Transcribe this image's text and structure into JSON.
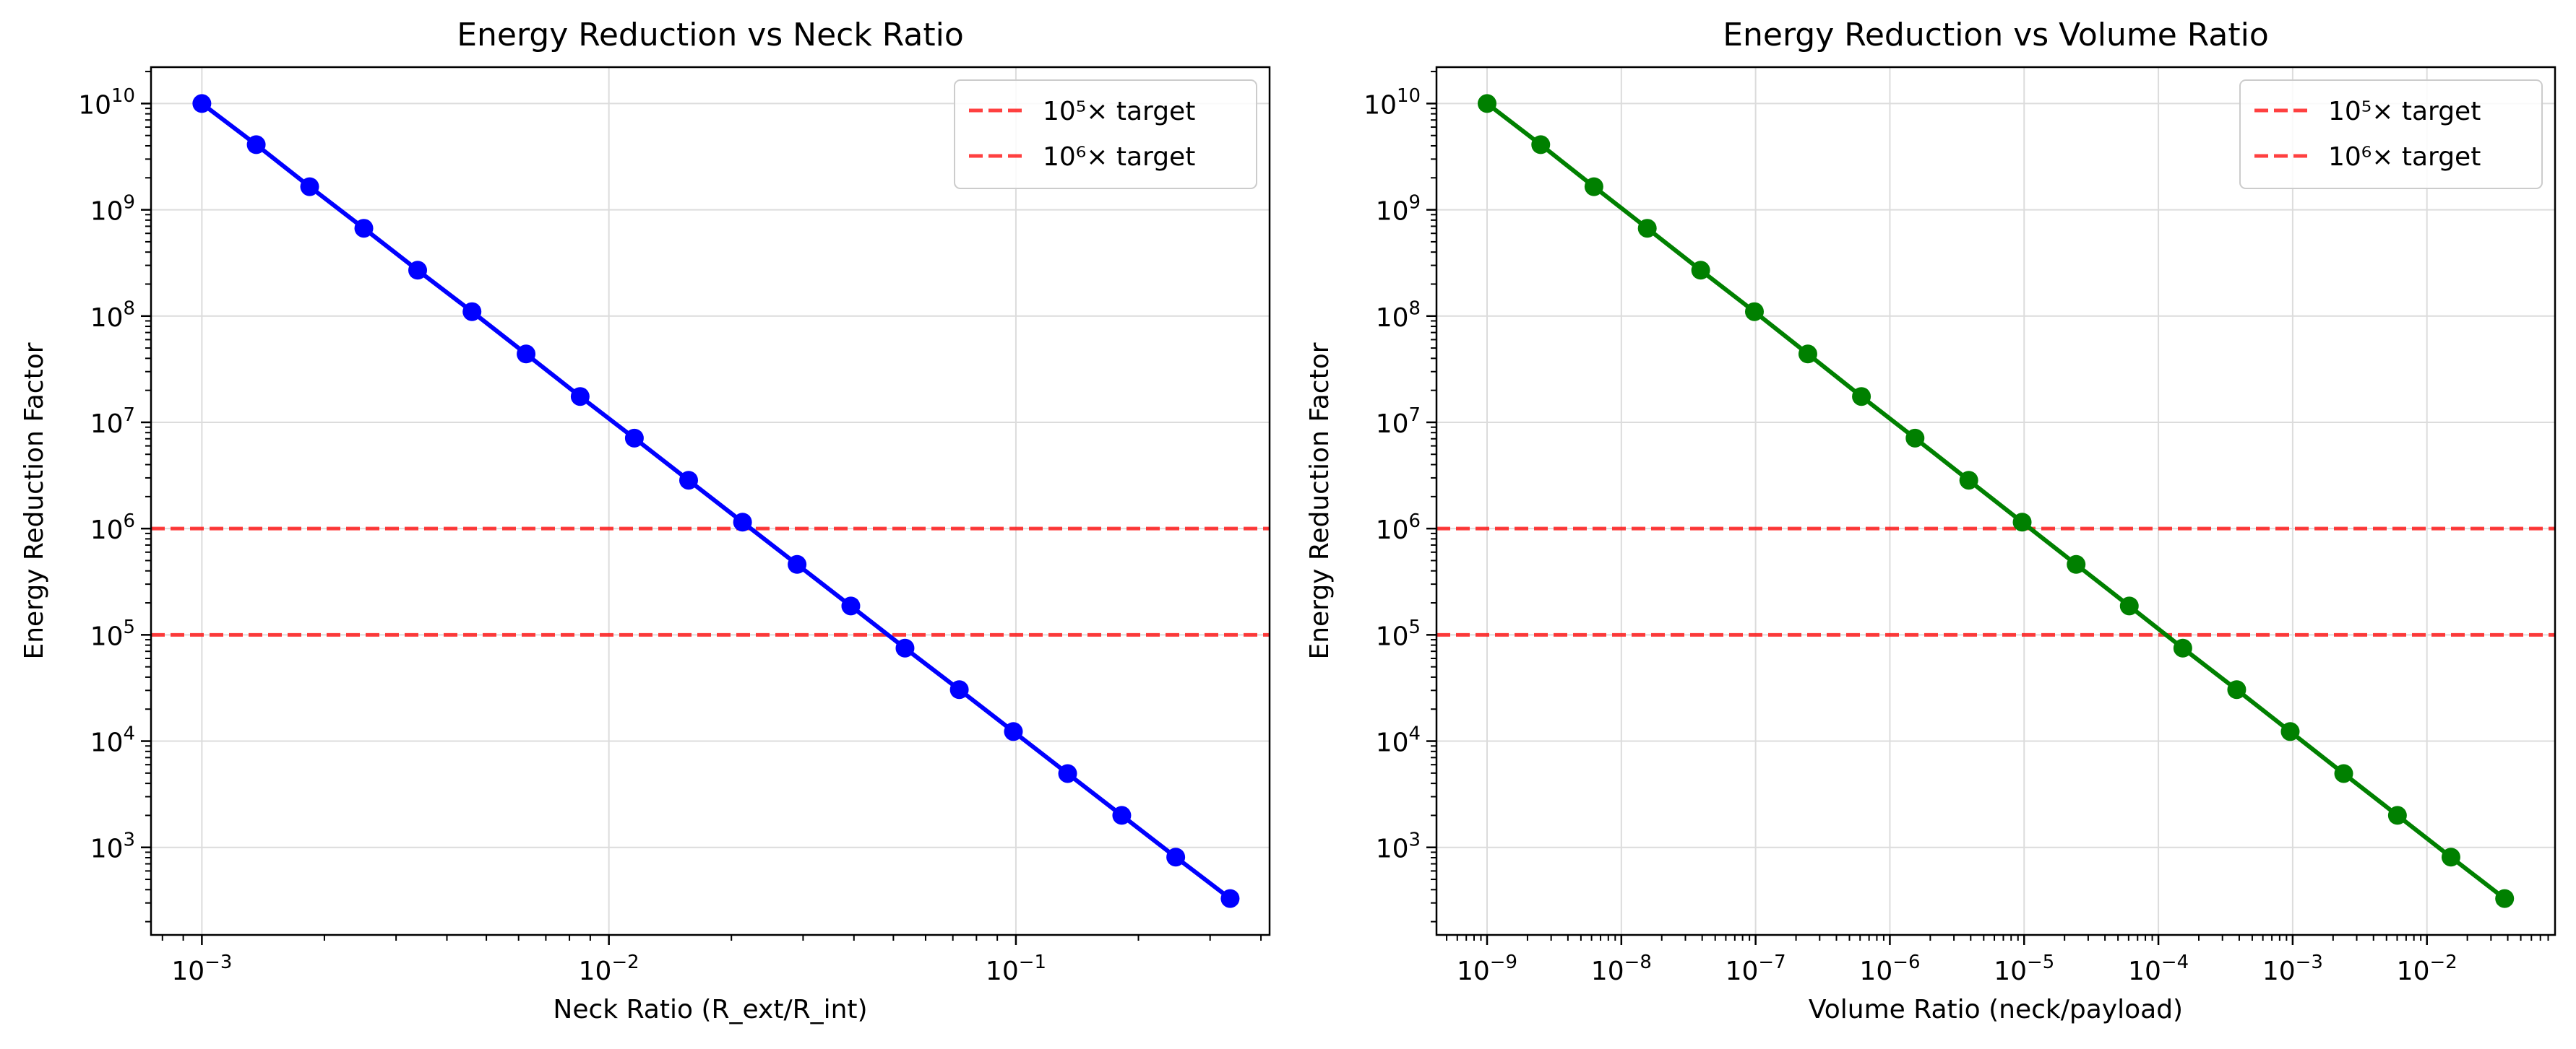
{
  "chart_data": [
    {
      "type": "line",
      "title": "Energy Reduction vs Neck Ratio",
      "xlabel": "Neck Ratio (R_ext/R_int)",
      "ylabel": "Energy Reduction Factor",
      "xscale": "log",
      "yscale": "log",
      "xlim": [
        0.00075,
        0.42
      ],
      "ylim": [
        150,
        22000000000
      ],
      "xticks": [
        {
          "value": 0.001,
          "base": "10",
          "exp": "−3"
        },
        {
          "value": 0.01,
          "base": "10",
          "exp": "−2"
        },
        {
          "value": 0.1,
          "base": "10",
          "exp": "−1"
        }
      ],
      "yticks": [
        {
          "value": 1000,
          "base": "10",
          "exp": "3"
        },
        {
          "value": 10000,
          "base": "10",
          "exp": "4"
        },
        {
          "value": 100000,
          "base": "10",
          "exp": "5"
        },
        {
          "value": 1000000,
          "base": "10",
          "exp": "6"
        },
        {
          "value": 10000000,
          "base": "10",
          "exp": "7"
        },
        {
          "value": 100000000,
          "base": "10",
          "exp": "8"
        },
        {
          "value": 1000000000,
          "base": "10",
          "exp": "9"
        },
        {
          "value": 10000000000,
          "base": "10",
          "exp": "10"
        }
      ],
      "grid": true,
      "legend_position": "upper right",
      "series": [
        {
          "name": "",
          "color": "#0000ff",
          "x": [
            0.001,
            0.00136,
            0.00184,
            0.0025,
            0.00339,
            0.00461,
            0.00626,
            0.0085,
            0.01155,
            0.0157,
            0.0213,
            0.029,
            0.0393,
            0.0534,
            0.0726,
            0.0986,
            0.134,
            0.182,
            0.247,
            0.336
          ],
          "y": [
            10000000000,
            4100000000,
            1650000000,
            670000000,
            270000000,
            110000000,
            44000000,
            17500000,
            7100000,
            2850000,
            1150000,
            460000,
            187000,
            75000,
            30500,
            12300,
            4950,
            2000,
            810,
            330
          ]
        }
      ],
      "hlines": [
        {
          "y": 100000,
          "label": "10⁵× target",
          "color": "#ff0000"
        },
        {
          "y": 1000000,
          "label": "10⁶× target",
          "color": "#ff0000"
        }
      ]
    },
    {
      "type": "line",
      "title": "Energy Reduction vs Volume Ratio",
      "xlabel": "Volume Ratio (neck/payload)",
      "ylabel": "Energy Reduction Factor",
      "xscale": "log",
      "yscale": "log",
      "xlim": [
        4.2e-10,
        0.09
      ],
      "ylim": [
        150,
        22000000000
      ],
      "xticks": [
        {
          "value": 1e-09,
          "base": "10",
          "exp": "−9"
        },
        {
          "value": 1e-08,
          "base": "10",
          "exp": "−8"
        },
        {
          "value": 1e-07,
          "base": "10",
          "exp": "−7"
        },
        {
          "value": 1e-06,
          "base": "10",
          "exp": "−6"
        },
        {
          "value": 1e-05,
          "base": "10",
          "exp": "−5"
        },
        {
          "value": 0.0001,
          "base": "10",
          "exp": "−4"
        },
        {
          "value": 0.001,
          "base": "10",
          "exp": "−3"
        },
        {
          "value": 0.01,
          "base": "10",
          "exp": "−2"
        }
      ],
      "yticks": [
        {
          "value": 1000,
          "base": "10",
          "exp": "3"
        },
        {
          "value": 10000,
          "base": "10",
          "exp": "4"
        },
        {
          "value": 100000,
          "base": "10",
          "exp": "5"
        },
        {
          "value": 1000000,
          "base": "10",
          "exp": "6"
        },
        {
          "value": 10000000,
          "base": "10",
          "exp": "7"
        },
        {
          "value": 100000000,
          "base": "10",
          "exp": "8"
        },
        {
          "value": 1000000000,
          "base": "10",
          "exp": "9"
        },
        {
          "value": 10000000000,
          "base": "10",
          "exp": "10"
        }
      ],
      "grid": true,
      "legend_position": "upper right",
      "series": [
        {
          "name": "",
          "color": "#008000",
          "x": [
            1e-09,
            2.51e-09,
            6.25e-09,
            1.56e-08,
            3.9e-08,
            9.8e-08,
            2.45e-07,
            6.14e-07,
            1.54e-06,
            3.87e-06,
            9.67e-06,
            2.44e-05,
            6.07e-05,
            0.000152,
            0.000383,
            0.000959,
            0.0024,
            0.00603,
            0.0151,
            0.0379
          ],
          "y": [
            10000000000,
            4100000000,
            1650000000,
            670000000,
            270000000,
            110000000,
            44000000,
            17500000,
            7100000,
            2850000,
            1150000,
            460000,
            187000,
            75000,
            30500,
            12300,
            4950,
            2000,
            810,
            330
          ]
        }
      ],
      "hlines": [
        {
          "y": 100000,
          "label": "10⁵× target",
          "color": "#ff0000"
        },
        {
          "y": 1000000,
          "label": "10⁶× target",
          "color": "#ff0000"
        }
      ]
    }
  ]
}
